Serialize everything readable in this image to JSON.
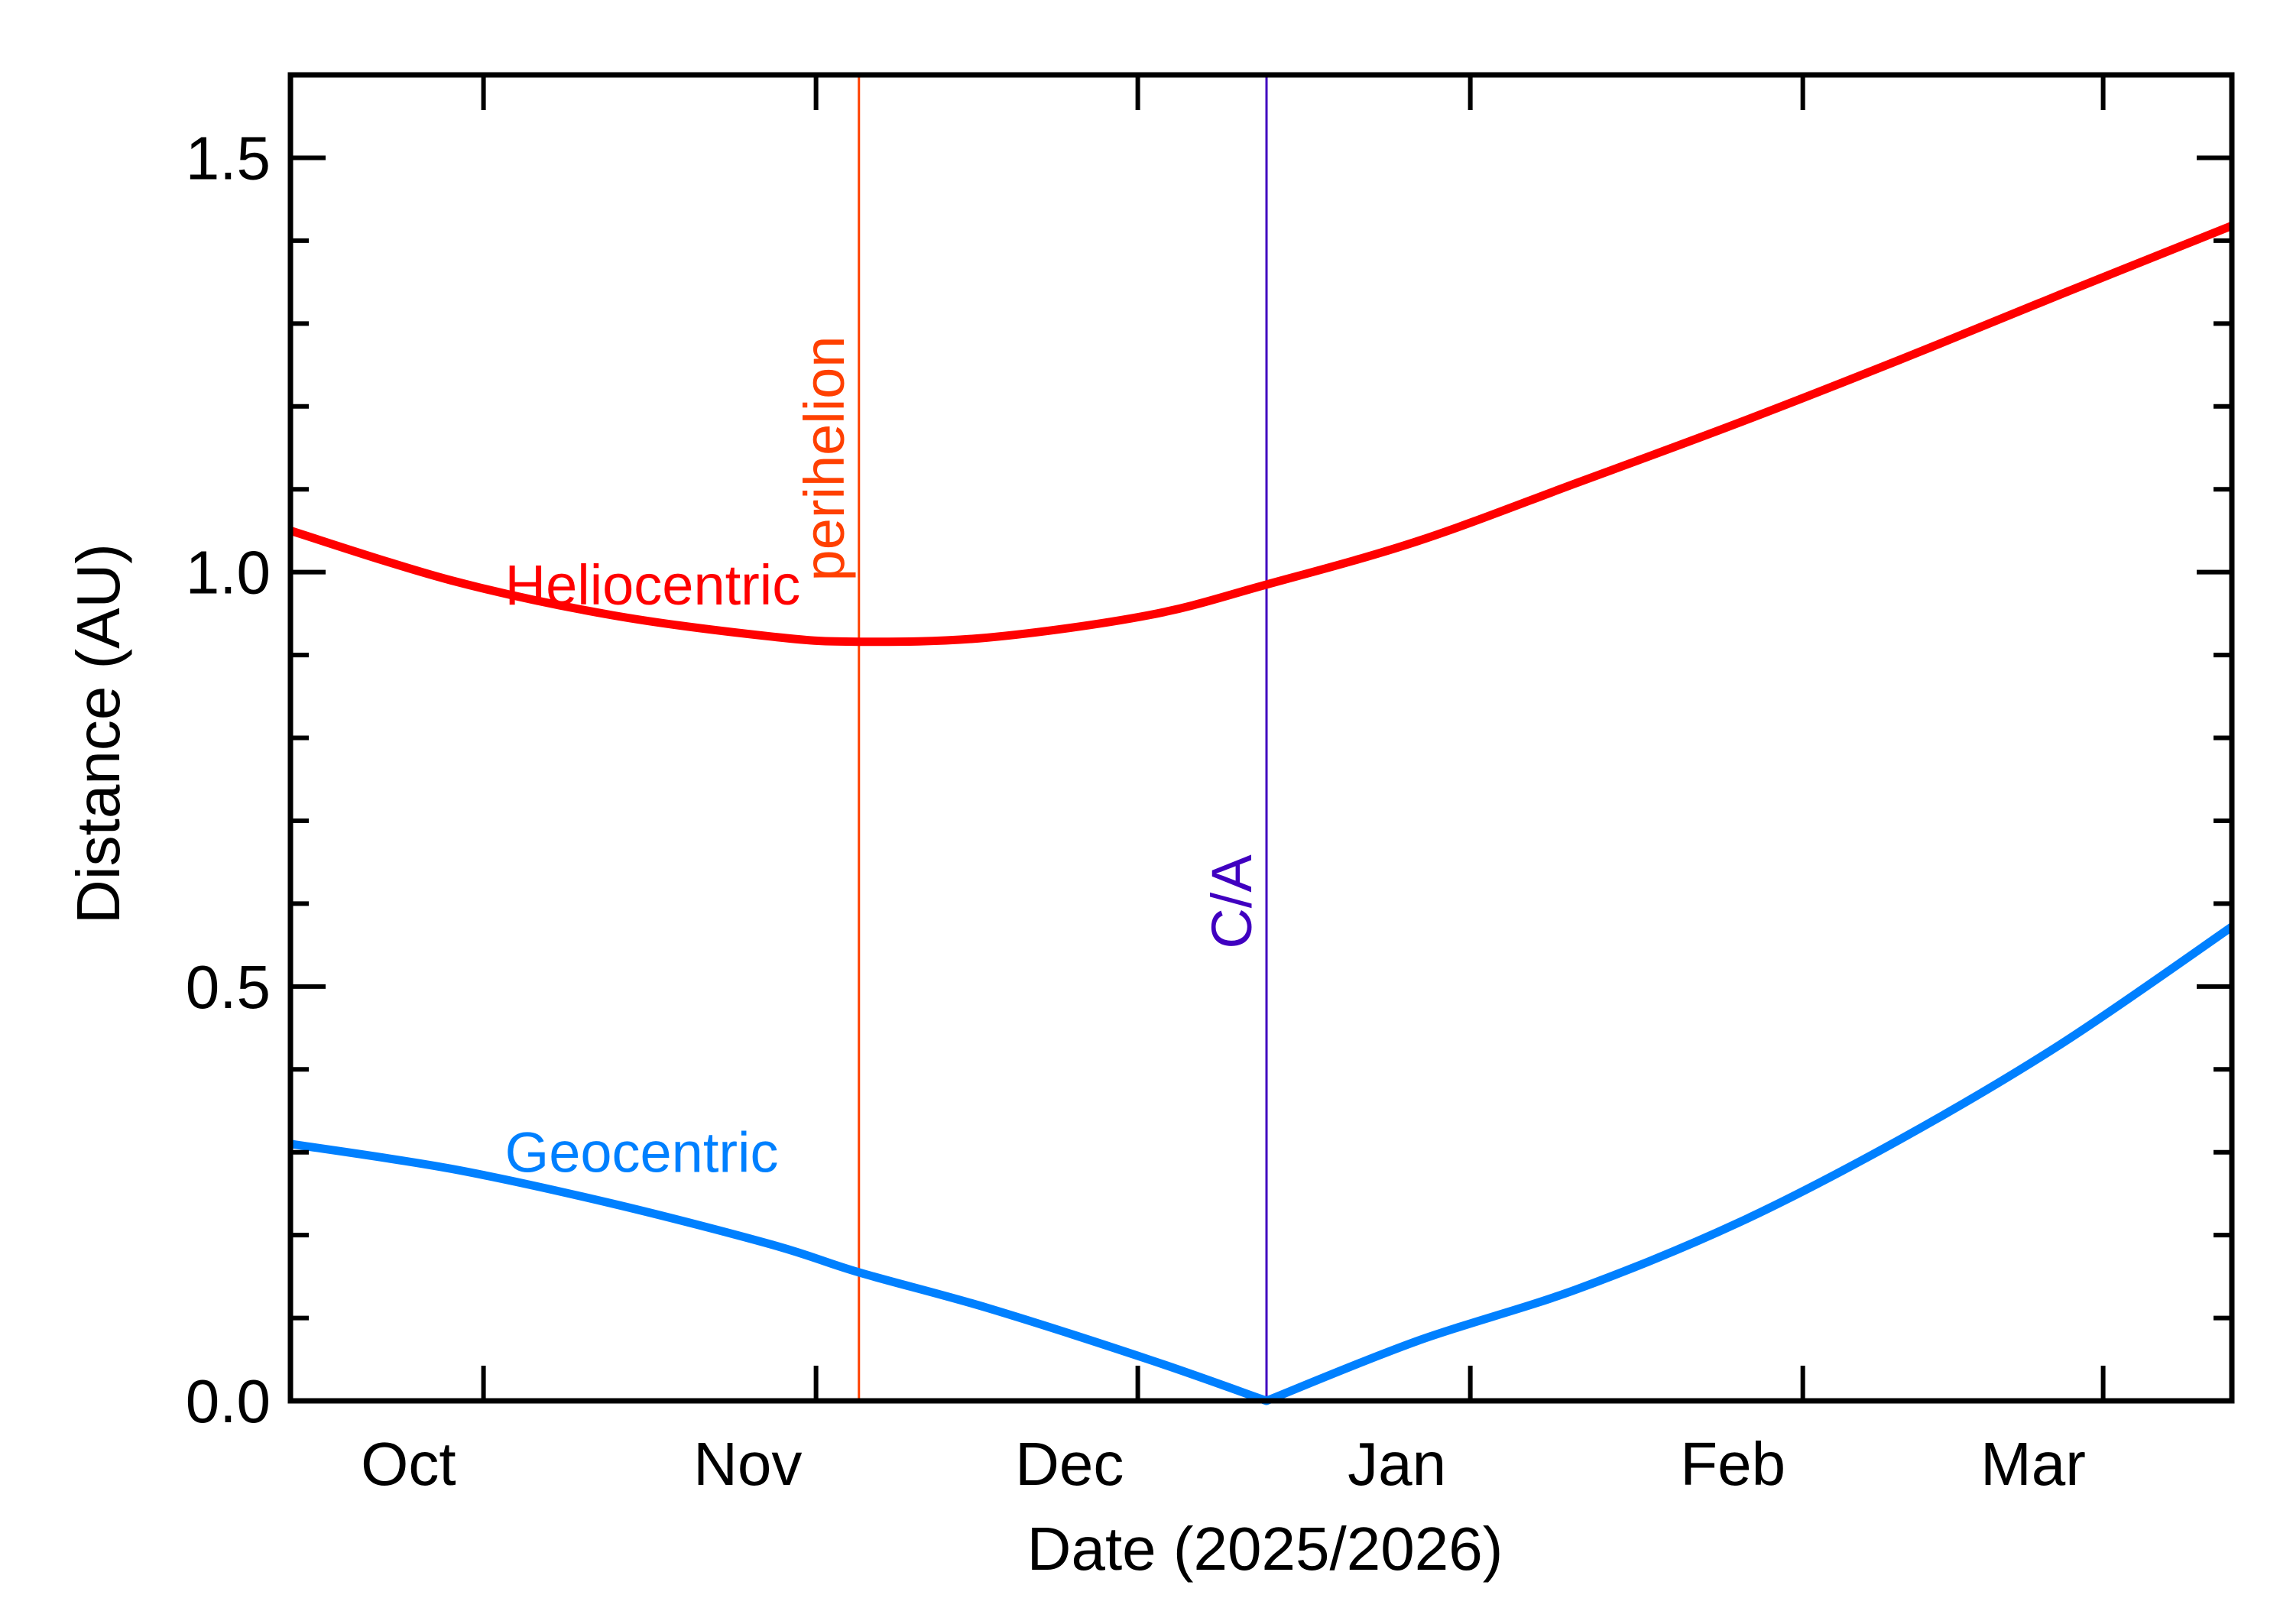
{
  "chart_data": {
    "type": "line",
    "xlabel": "Date (2025/2026)",
    "ylabel": "Distance (AU)",
    "xlim": [
      "2025-09-27",
      "2026-03-27"
    ],
    "ylim": [
      0.0,
      1.6
    ],
    "x_ticks": [
      {
        "date": "2025-10-01",
        "label": "Oct"
      },
      {
        "date": "2025-11-01",
        "label": "Nov"
      },
      {
        "date": "2025-12-01",
        "label": "Dec"
      },
      {
        "date": "2026-01-01",
        "label": "Jan"
      },
      {
        "date": "2026-02-01",
        "label": "Feb"
      },
      {
        "date": "2026-03-01",
        "label": "Mar"
      }
    ],
    "y_ticks": [
      "0.0",
      "0.5",
      "1.0",
      "1.5"
    ],
    "y_tick_values": [
      0.0,
      0.5,
      1.0,
      1.5
    ],
    "grid": false,
    "series": [
      {
        "name": "Heliocentric",
        "color": "#ff0000",
        "x": [
          "2025-09-27",
          "2025-10-12",
          "2025-10-27",
          "2025-11-11",
          "2025-11-19",
          "2025-12-01",
          "2025-12-16",
          "2025-12-27",
          "2026-01-10",
          "2026-01-25",
          "2026-02-09",
          "2026-02-24",
          "2026-03-11",
          "2026-03-27"
        ],
        "values": [
          1.05,
          0.99,
          0.948,
          0.922,
          0.916,
          0.921,
          0.948,
          0.985,
          1.037,
          1.108,
          1.18,
          1.256,
          1.335,
          1.418
        ]
      },
      {
        "name": "Geocentric",
        "color": "#0080ff",
        "x": [
          "2025-09-27",
          "2025-10-12",
          "2025-10-27",
          "2025-11-11",
          "2025-11-19",
          "2025-12-01",
          "2025-12-16",
          "2025-12-27",
          "2026-01-10",
          "2026-01-25",
          "2026-02-09",
          "2026-02-24",
          "2026-03-11",
          "2026-03-27"
        ],
        "values": [
          0.31,
          0.28,
          0.238,
          0.188,
          0.155,
          0.112,
          0.05,
          0.0,
          0.072,
          0.135,
          0.215,
          0.315,
          0.43,
          0.572
        ]
      }
    ],
    "annotations": [
      {
        "label": "perihelion",
        "date": "2025-11-19",
        "color": "#ff4000"
      },
      {
        "label": "C/A",
        "date": "2025-12-27",
        "color": "#4000c0"
      }
    ]
  }
}
